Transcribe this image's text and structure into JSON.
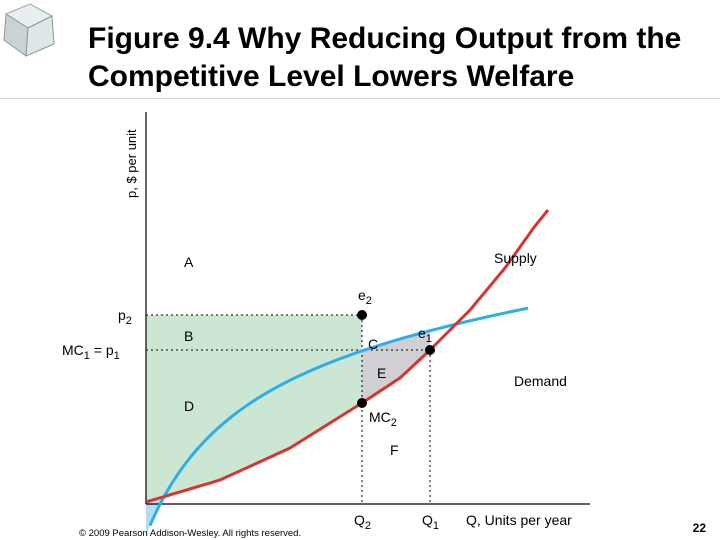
{
  "slide": {
    "title": "Figure 9.4 Why Reducing Output from the Competitive Level Lowers Welfare",
    "copyright": "© 2009 Pearson Addison-Wesley. All rights reserved.",
    "page_number": "22"
  },
  "chart_data": {
    "type": "area",
    "xlabel": "Q, Units per year",
    "ylabel": "p, $ per unit",
    "x_ticks": [
      {
        "name": "Q2",
        "main": "Q",
        "sub": "2"
      },
      {
        "name": "Q1",
        "main": "Q",
        "sub": "1"
      }
    ],
    "y_ticks": [
      {
        "name": "p2",
        "main": "p",
        "sub": "2"
      },
      {
        "name": "MC1-p1",
        "main": "MC",
        "sub": "1",
        "rest": " = p",
        "sub2": "1"
      }
    ],
    "series": [
      {
        "name": "Demand",
        "color": "#2eaee6"
      },
      {
        "name": "Supply",
        "color": "#d9342b"
      }
    ],
    "points": [
      {
        "name": "e2",
        "main": "e",
        "sub": "2"
      },
      {
        "name": "e1",
        "main": "e",
        "sub": "1"
      },
      {
        "name": "MC2",
        "main": "MC",
        "sub": "2"
      }
    ],
    "regions": [
      {
        "name": "A",
        "label": "A",
        "color": "#b3dcf7"
      },
      {
        "name": "B",
        "label": "B",
        "color": "#cce6d4"
      },
      {
        "name": "C",
        "label": "C",
        "color": "#cfcfd4"
      },
      {
        "name": "D",
        "label": "D",
        "color": "#cce6d4"
      },
      {
        "name": "E",
        "label": "E",
        "color": "#cfcfd4"
      },
      {
        "name": "F",
        "label": "F",
        "color": "#ffffff"
      }
    ],
    "grid": false,
    "legend": "none"
  }
}
